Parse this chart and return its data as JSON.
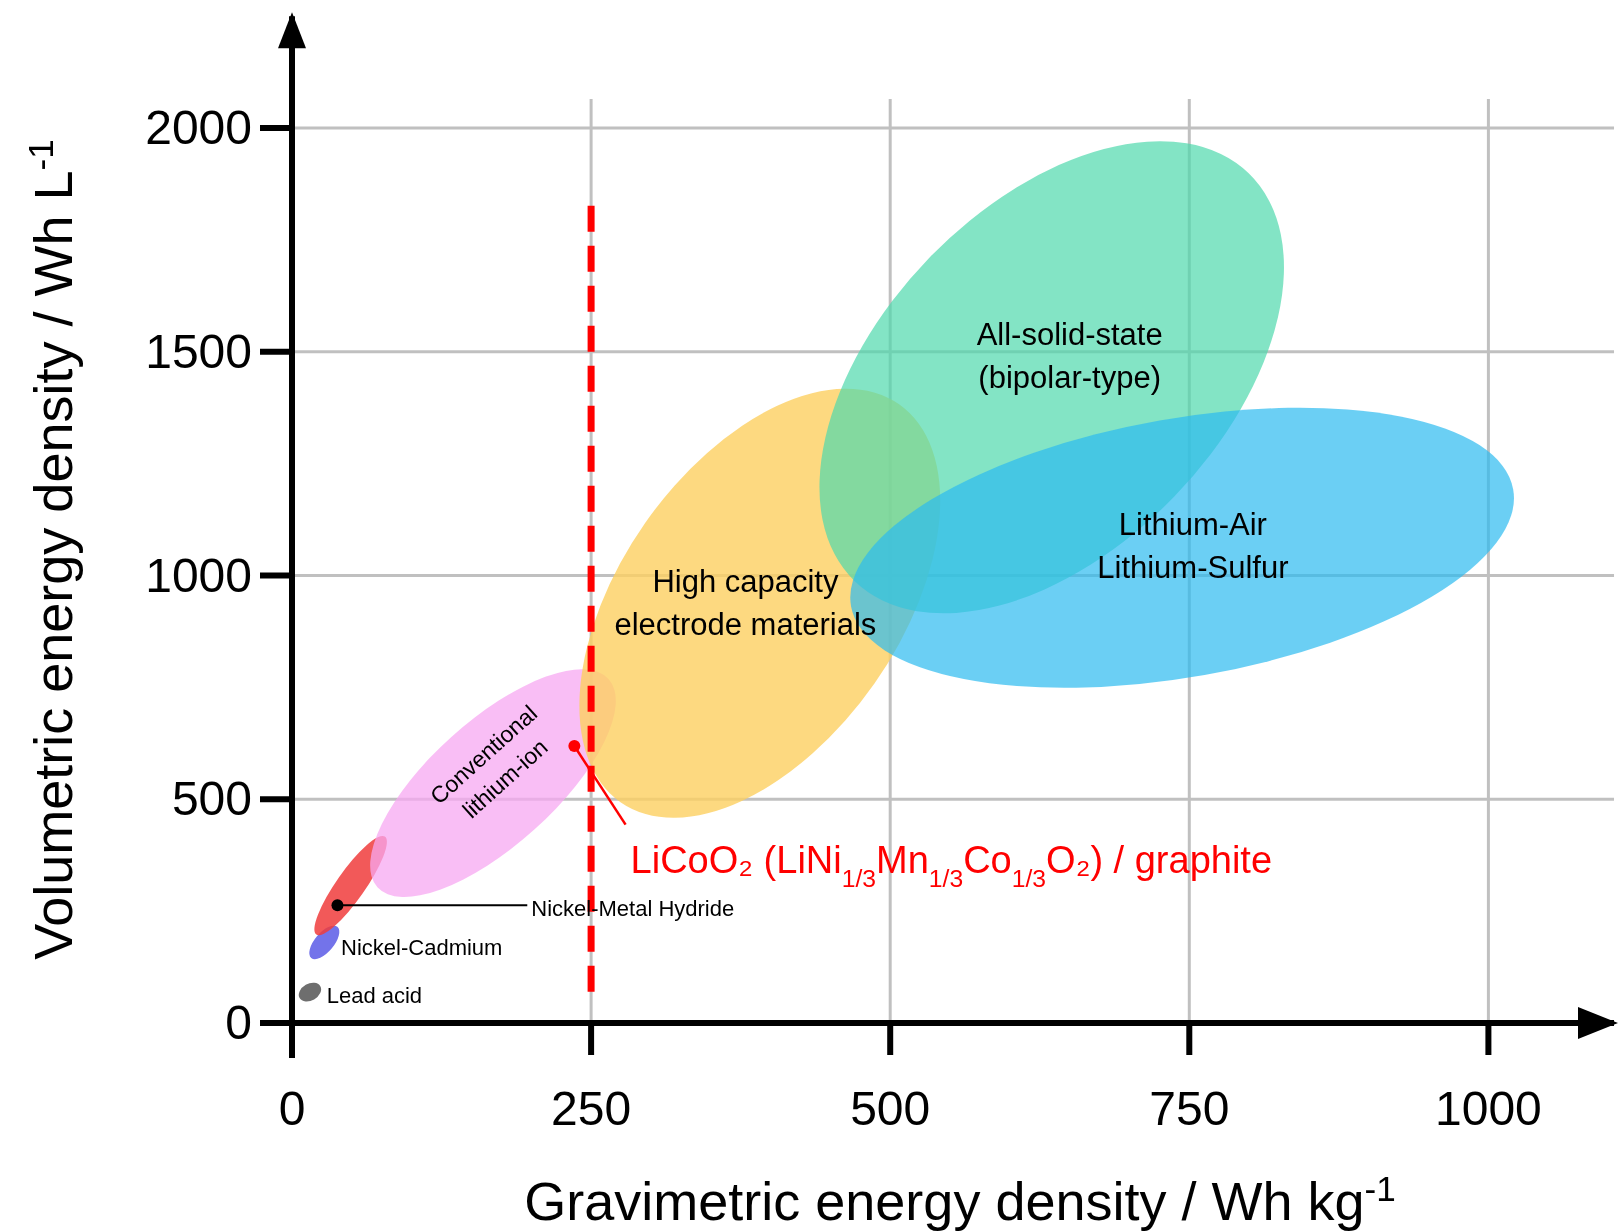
{
  "chart_data": {
    "type": "scatter",
    "xlabel": "Gravimetric energy density / Wh kg$^{-1}$",
    "ylabel": "Volumetric energy density / Wh L$^{-1}$",
    "xlim": [
      0,
      1105
    ],
    "ylim": [
      0,
      2250
    ],
    "xticks": [
      0,
      250,
      500,
      750,
      1000
    ],
    "yticks": [
      0,
      500,
      1000,
      1500,
      2000
    ],
    "grid": true,
    "marker": "circle",
    "series": [
      {
        "color": "#000000",
        "x": [
          38
        ],
        "values": [
          263
        ]
      },
      {
        "color": "#ff0000",
        "x": [
          236
        ],
        "values": [
          619
        ]
      }
    ],
    "ref_lines": [
      {
        "axis": "x",
        "value": 250,
        "color": "#ff0000",
        "line_style": "dashed"
      }
    ],
    "annotations": [
      "All-solid-state\n(bipolar-type)",
      "Lithium-Air\nLithium-Sulfur",
      "High capacity\nelectrode materials",
      "Conventional\nlithium-ion",
      {
        "text": "Nickel-Metal Hydride",
        "x": 38,
        "y": 263
      },
      "Nickel-Cadmium",
      "Lead acid",
      {
        "text": "LiCoO₂ (LiNi$_{1/3}$Mn$_{1/3}$Co$_{1/3}$O₂) / graphite",
        "x": 236,
        "y": 619
      }
    ]
  }
}
